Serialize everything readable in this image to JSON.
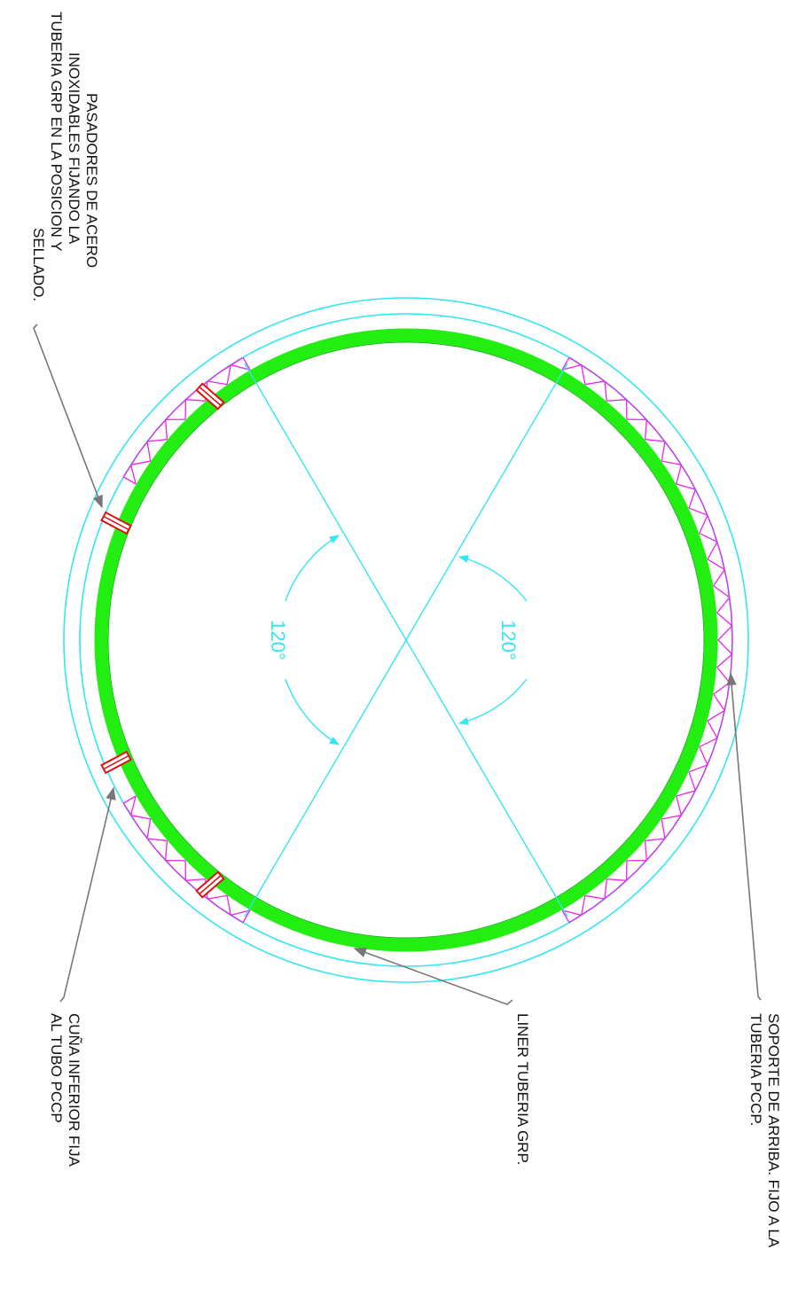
{
  "diagram": {
    "angles": [
      {
        "text": "120°"
      },
      {
        "text": "120°"
      }
    ],
    "callouts": [
      {
        "lines": [
          "PASADORES DE ACERO",
          "INOXIDABLES FIJANDO LA",
          "TUBERIA GRP EN LA POSICION Y",
          "SELLADO."
        ]
      },
      {
        "lines": [
          "CUÑA INFERIOR FIJA",
          "AL TUBO PCCP"
        ]
      },
      {
        "lines": [
          "LINER TUBERIA GRP."
        ]
      },
      {
        "lines": [
          "SOPORTE DE ARRIBA. FIJO A LA",
          "TUBERIA PCCP."
        ]
      }
    ]
  },
  "colors": {
    "pccp_ring": "#33e6f0",
    "grp_liner": "#22ee11",
    "supports": "#ee22ee",
    "pins": "#dd1111",
    "leaders": "#777777",
    "background": "#ffffff"
  }
}
